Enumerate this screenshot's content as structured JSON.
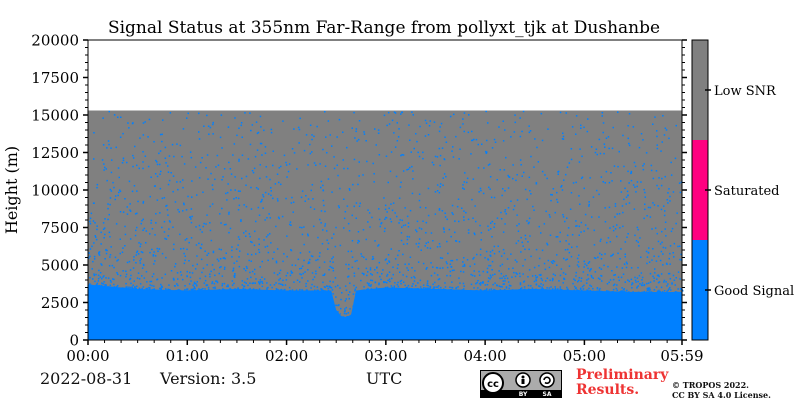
{
  "chart_data": {
    "type": "heatmap",
    "title": "Signal Status at 355nm Far-Range from pollyxt_tjk at Dushanbe",
    "xlabel": "",
    "ylabel": "Height (m)",
    "x_ticks": [
      "00:00",
      "01:00",
      "02:00",
      "03:00",
      "04:00",
      "05:00",
      "05:59"
    ],
    "y_ticks": [
      0,
      2500,
      5000,
      7500,
      10000,
      12500,
      15000,
      17500,
      20000
    ],
    "xlim_hours": [
      0,
      5.983
    ],
    "ylim": [
      0,
      20000
    ],
    "data_top_height": 15300,
    "status_classes": [
      {
        "label": "Good Signal",
        "color": "#0080ff"
      },
      {
        "label": "Saturated",
        "color": "#ff0080"
      },
      {
        "label": "Low SNR",
        "color": "#808080"
      }
    ],
    "good_signal_top_profile": {
      "time_hours": [
        0.0,
        0.5,
        1.0,
        1.5,
        2.0,
        2.45,
        2.5,
        2.55,
        2.6,
        2.65,
        2.7,
        3.0,
        3.5,
        4.0,
        4.5,
        5.0,
        5.5,
        5.983
      ],
      "height_m": [
        3700,
        3400,
        3300,
        3400,
        3300,
        3300,
        2000,
        1600,
        1500,
        1700,
        3300,
        3500,
        3400,
        3300,
        3400,
        3300,
        3200,
        3200
      ]
    }
  },
  "footer": {
    "date": "2022-08-31",
    "version": "Version: 3.5",
    "xaxis_label": "UTC",
    "preliminary_line1": "Preliminary",
    "preliminary_line2": "Results.",
    "copyright_line1": "© TROPOS 2022.",
    "copyright_line2": "CC BY SA 4.0 License."
  },
  "colors": {
    "good": "#0080ff",
    "saturated": "#ff0080",
    "low_snr": "#808080",
    "preliminary": "#ee3333"
  },
  "license_badge": {
    "icon": "cc-by-sa-badge",
    "by": "BY",
    "sa": "SA"
  }
}
